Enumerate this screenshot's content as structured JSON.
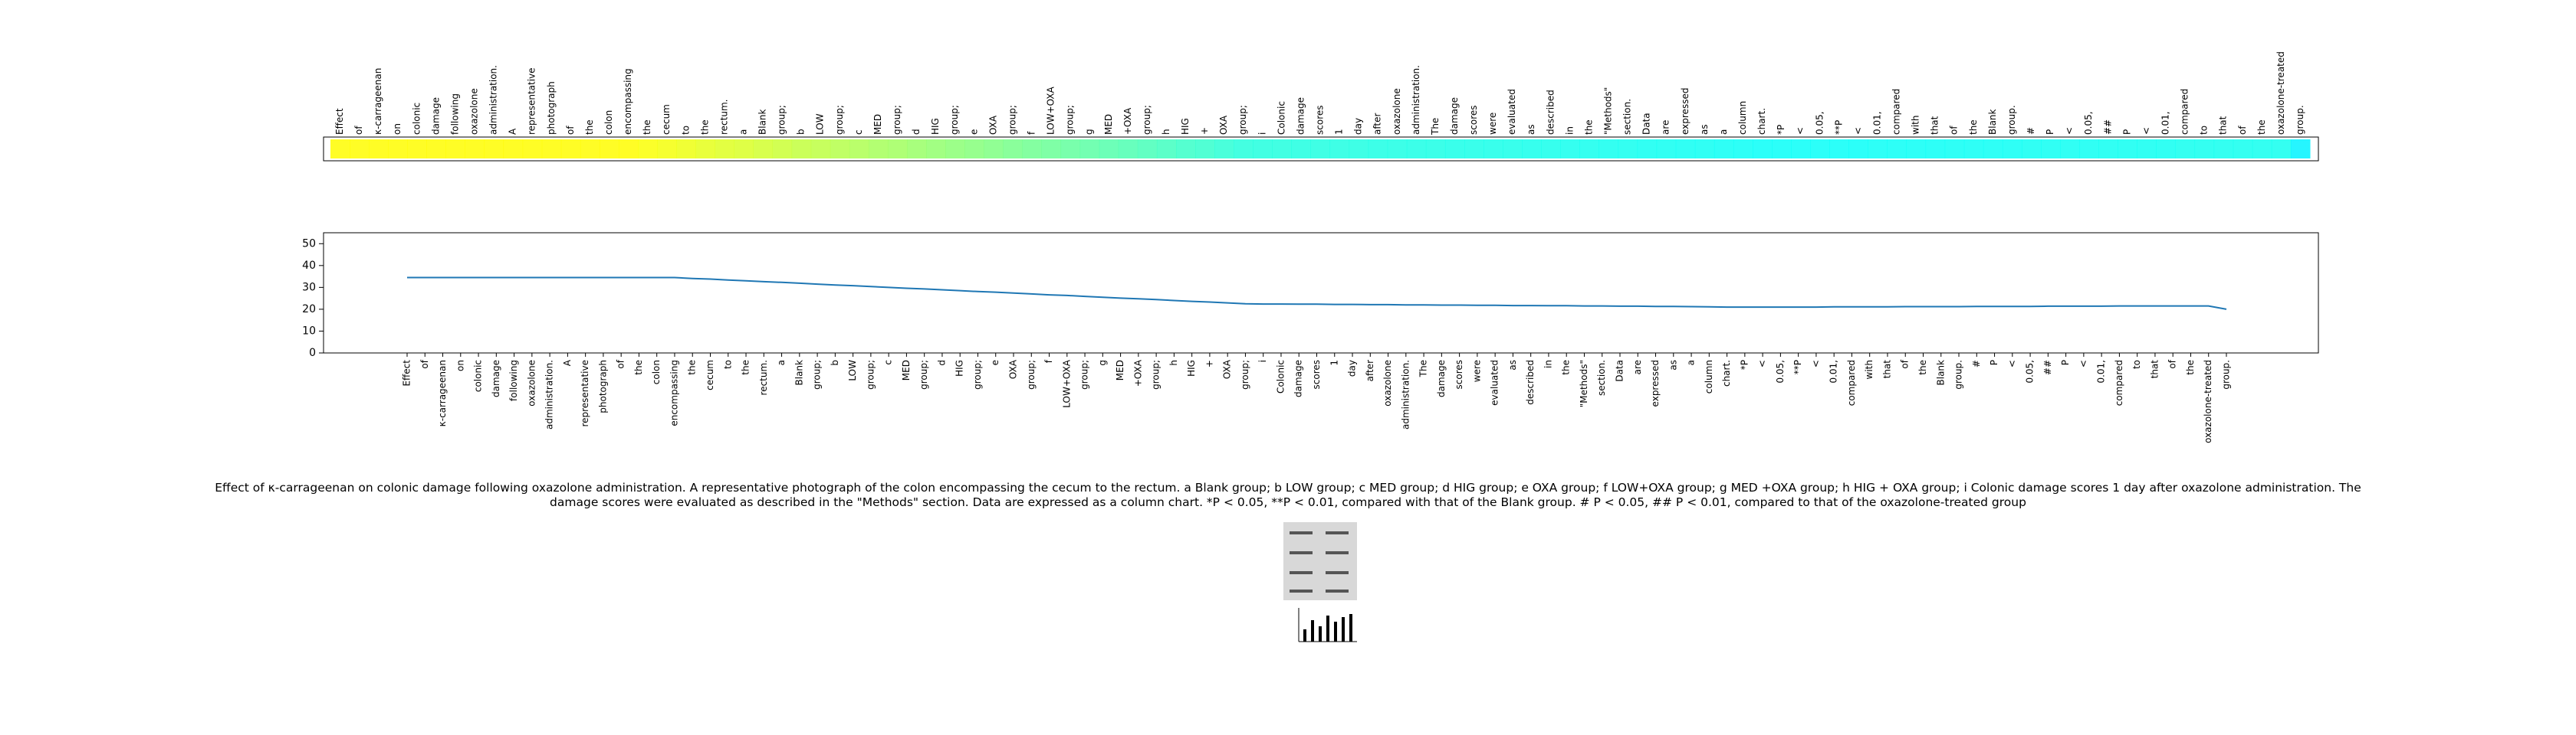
{
  "chart_data": [
    {
      "type": "heatmap",
      "categories": [
        "Effect",
        "of",
        "κ-carrageenan",
        "on",
        "colonic",
        "damage",
        "following",
        "oxazolone",
        "administration.",
        "A",
        "representative",
        "photograph",
        "of",
        "the",
        "colon",
        "encompassing",
        "the",
        "cecum",
        "to",
        "the",
        "rectum.",
        "a",
        "Blank",
        "group;",
        "b",
        "LOW",
        "group;",
        "c",
        "MED",
        "group;",
        "d",
        "HIG",
        "group;",
        "e",
        "OXA",
        "group;",
        "f",
        "LOW+OXA",
        "group;",
        "g",
        "MED",
        "+OXA",
        "group;",
        "h",
        "HIG",
        "+",
        "OXA",
        "group;",
        "i",
        "Colonic",
        "damage",
        "scores",
        "1",
        "day",
        "after",
        "oxazolone",
        "administration.",
        "The",
        "damage",
        "scores",
        "were",
        "evaluated",
        "as",
        "described",
        "in",
        "the",
        "\"Methods\"",
        "section.",
        "Data",
        "are",
        "expressed",
        "as",
        "a",
        "column",
        "chart.",
        "*P",
        "<",
        "0.05,",
        "**P",
        "<",
        "0.01,",
        "compared",
        "with",
        "that",
        "of",
        "the",
        "Blank",
        "group.",
        "#",
        "P",
        "<",
        "0.05,",
        "##",
        "P",
        "<",
        "0.01,",
        "compared",
        "to",
        "that",
        "of",
        "the",
        "oxazolone-treated",
        "group."
      ],
      "values": [
        34.5,
        34.5,
        34.5,
        34.5,
        34.5,
        34.5,
        34.5,
        34.5,
        34.5,
        34.5,
        34.5,
        34.5,
        34.5,
        34.5,
        34.5,
        34.5,
        34.1,
        33.8,
        33.4,
        33.0,
        32.6,
        32.3,
        31.9,
        31.5,
        31.1,
        30.8,
        30.4,
        30.0,
        29.6,
        29.3,
        28.9,
        28.5,
        28.1,
        27.8,
        27.4,
        27.0,
        26.6,
        26.3,
        25.9,
        25.5,
        25.1,
        24.8,
        24.4,
        24.0,
        23.6,
        23.3,
        22.9,
        22.5,
        22.4,
        22.4,
        22.3,
        22.3,
        22.2,
        22.2,
        22.1,
        22.1,
        22.0,
        22.0,
        21.9,
        21.9,
        21.8,
        21.8,
        21.7,
        21.7,
        21.6,
        21.6,
        21.5,
        21.5,
        21.4,
        21.4,
        21.3,
        21.3,
        21.2,
        21.1,
        21.0,
        21.0,
        21.0,
        21.0,
        21.0,
        21.0,
        21.1,
        21.1,
        21.1,
        21.1,
        21.2,
        21.2,
        21.2,
        21.2,
        21.3,
        21.3,
        21.3,
        21.3,
        21.4,
        21.4,
        21.4,
        21.4,
        21.5,
        21.5,
        21.5,
        21.5,
        21.5,
        21.5,
        20.0
      ],
      "colormap": "jet"
    },
    {
      "type": "line",
      "categories": [
        "Effect",
        "of",
        "κ-carrageenan",
        "on",
        "colonic",
        "damage",
        "following",
        "oxazolone",
        "administration.",
        "A",
        "representative",
        "photograph",
        "of",
        "the",
        "colon",
        "encompassing",
        "the",
        "cecum",
        "to",
        "the",
        "rectum.",
        "a",
        "Blank",
        "group;",
        "b",
        "LOW",
        "group;",
        "c",
        "MED",
        "group;",
        "d",
        "HIG",
        "group;",
        "e",
        "OXA",
        "group;",
        "f",
        "LOW+OXA",
        "group;",
        "g",
        "MED",
        "+OXA",
        "group;",
        "h",
        "HIG",
        "+",
        "OXA",
        "group;",
        "i",
        "Colonic",
        "damage",
        "scores",
        "1",
        "day",
        "after",
        "oxazolone",
        "administration.",
        "The",
        "damage",
        "scores",
        "were",
        "evaluated",
        "as",
        "described",
        "in",
        "the",
        "\"Methods\"",
        "section.",
        "Data",
        "are",
        "expressed",
        "as",
        "a",
        "column",
        "chart.",
        "*P",
        "<",
        "0.05,",
        "**P",
        "<",
        "0.01,",
        "compared",
        "with",
        "that",
        "of",
        "the",
        "Blank",
        "group.",
        "#",
        "P",
        "<",
        "0.05,",
        "##",
        "P",
        "<",
        "0.01,",
        "compared",
        "to",
        "that",
        "of",
        "the",
        "oxazolone-treated",
        "group."
      ],
      "values": [
        34.5,
        34.5,
        34.5,
        34.5,
        34.5,
        34.5,
        34.5,
        34.5,
        34.5,
        34.5,
        34.5,
        34.5,
        34.5,
        34.5,
        34.5,
        34.5,
        34.1,
        33.8,
        33.4,
        33.0,
        32.6,
        32.3,
        31.9,
        31.5,
        31.1,
        30.8,
        30.4,
        30.0,
        29.6,
        29.3,
        28.9,
        28.5,
        28.1,
        27.8,
        27.4,
        27.0,
        26.6,
        26.3,
        25.9,
        25.5,
        25.1,
        24.8,
        24.4,
        24.0,
        23.6,
        23.3,
        22.9,
        22.5,
        22.4,
        22.4,
        22.3,
        22.3,
        22.2,
        22.2,
        22.1,
        22.1,
        22.0,
        22.0,
        21.9,
        21.9,
        21.8,
        21.8,
        21.7,
        21.7,
        21.6,
        21.6,
        21.5,
        21.5,
        21.4,
        21.4,
        21.3,
        21.3,
        21.2,
        21.1,
        21.0,
        21.0,
        21.0,
        21.0,
        21.0,
        21.0,
        21.1,
        21.1,
        21.1,
        21.1,
        21.2,
        21.2,
        21.2,
        21.2,
        21.3,
        21.3,
        21.3,
        21.3,
        21.4,
        21.4,
        21.4,
        21.4,
        21.5,
        21.5,
        21.5,
        21.5,
        21.5,
        21.5,
        20.0
      ],
      "color": "#1f77b4",
      "ylim": [
        0,
        55
      ],
      "yticks": [
        0,
        10,
        20,
        30,
        40,
        50
      ]
    }
  ],
  "caption": "Effect of κ-carrageenan on colonic damage following oxazolone administration. A representative photograph of the colon encompassing the cecum to the rectum. a Blank group; b LOW group; c MED group; d HIG group; e OXA group; f LOW+OXA group; g MED +OXA group; h HIG + OXA group; i Colonic damage scores 1 day after oxazolone administration. The damage scores were evaluated as described in the \"Methods\" section. Data are expressed as a column chart. *P < 0.05, **P < 0.01, compared with that of the Blank group. # P < 0.05, ## P < 0.01, compared to that of the oxazolone-treated group"
}
